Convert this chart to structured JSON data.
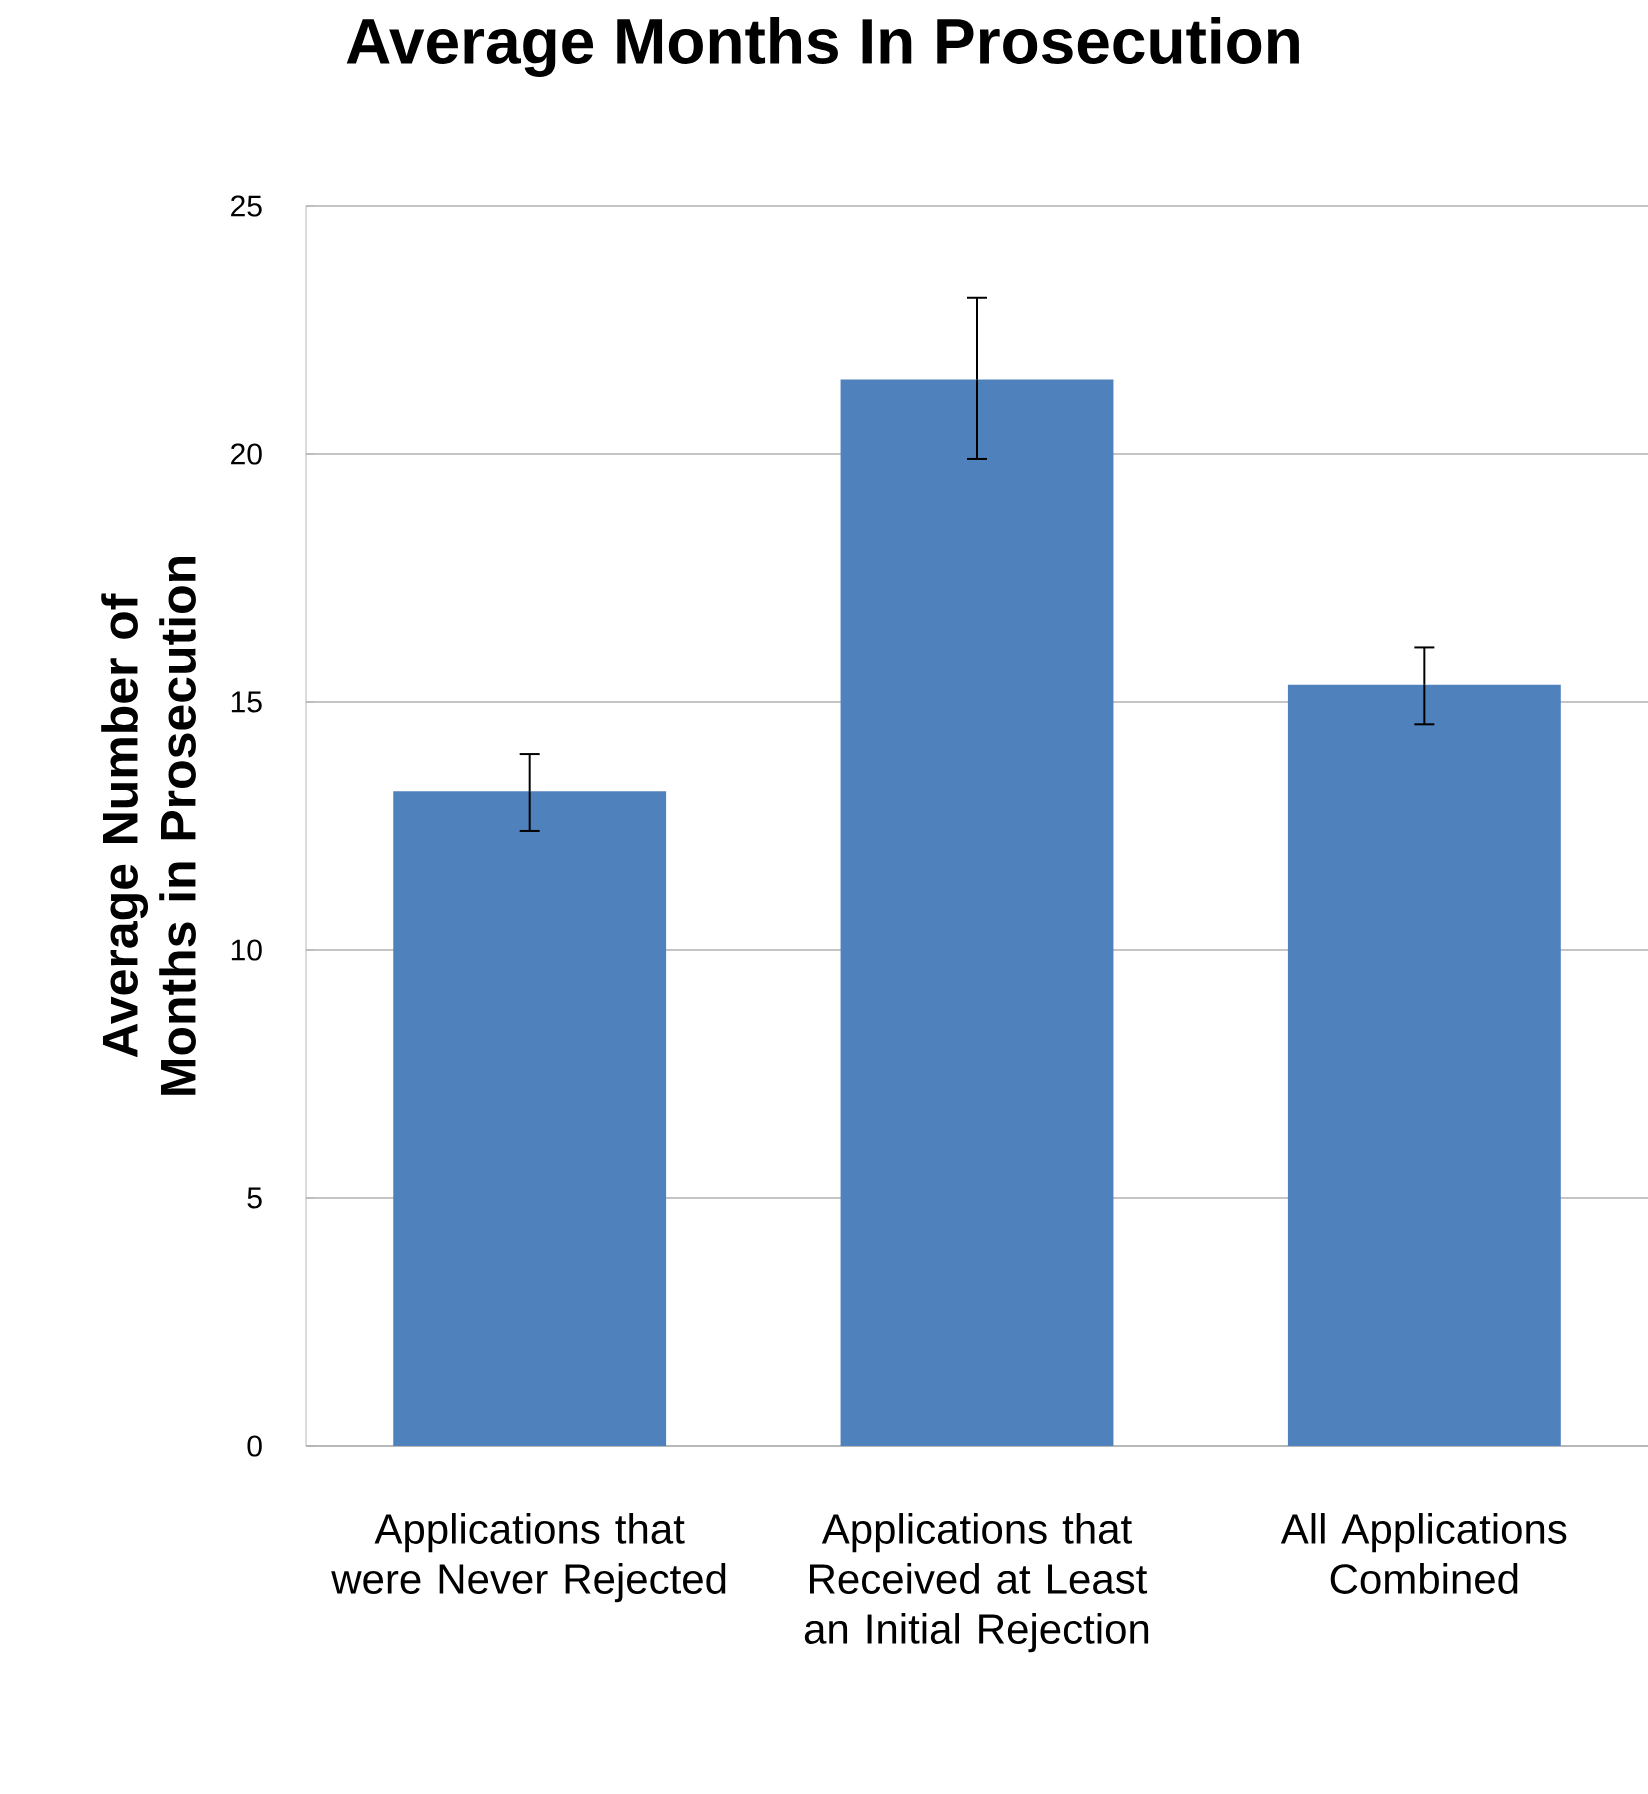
{
  "chart_data": {
    "type": "bar",
    "title": "Average Months In Prosecution",
    "ylabel": "Average Number of Months in Prosecution",
    "categories": [
      "Applications that were Never Rejected",
      "Applications that Received at Least an Initial Rejection",
      "All Applications Combined"
    ],
    "values": [
      13.2,
      21.5,
      15.35
    ],
    "errors": [
      [
        12.4,
        13.95
      ],
      [
        19.9,
        23.15
      ],
      [
        14.55,
        16.1
      ]
    ],
    "color": "#4f81bd",
    "ylim": [
      0,
      25
    ],
    "yticks": [
      0,
      5,
      10,
      15,
      20,
      25
    ],
    "grid": "y"
  }
}
